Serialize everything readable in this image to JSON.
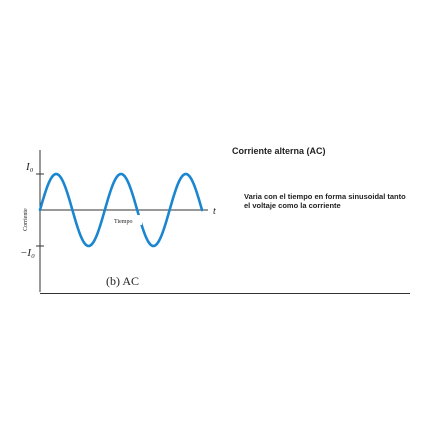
{
  "panel": {
    "title": "Corriente alterna (AC)",
    "description": "Varia con el tiempo en forma sinusoidal tanto el voltaje como la corriente",
    "caption": "(b) AC"
  },
  "graph": {
    "y_axis_label": "Corriente",
    "x_axis_label": "Tiempo",
    "t_label": "t",
    "positive_peak_label": "I₀",
    "negative_peak_label": "−I₀"
  },
  "chart_data": {
    "type": "line",
    "title": "",
    "xlabel": "Tiempo",
    "ylabel": "Corriente",
    "cycles": 2.5,
    "amplitude": 1,
    "ylim": [
      -1,
      1
    ],
    "grid": false
  },
  "colors": {
    "wave": "#1b86d0",
    "axis": "#333333",
    "text": "#222222"
  }
}
